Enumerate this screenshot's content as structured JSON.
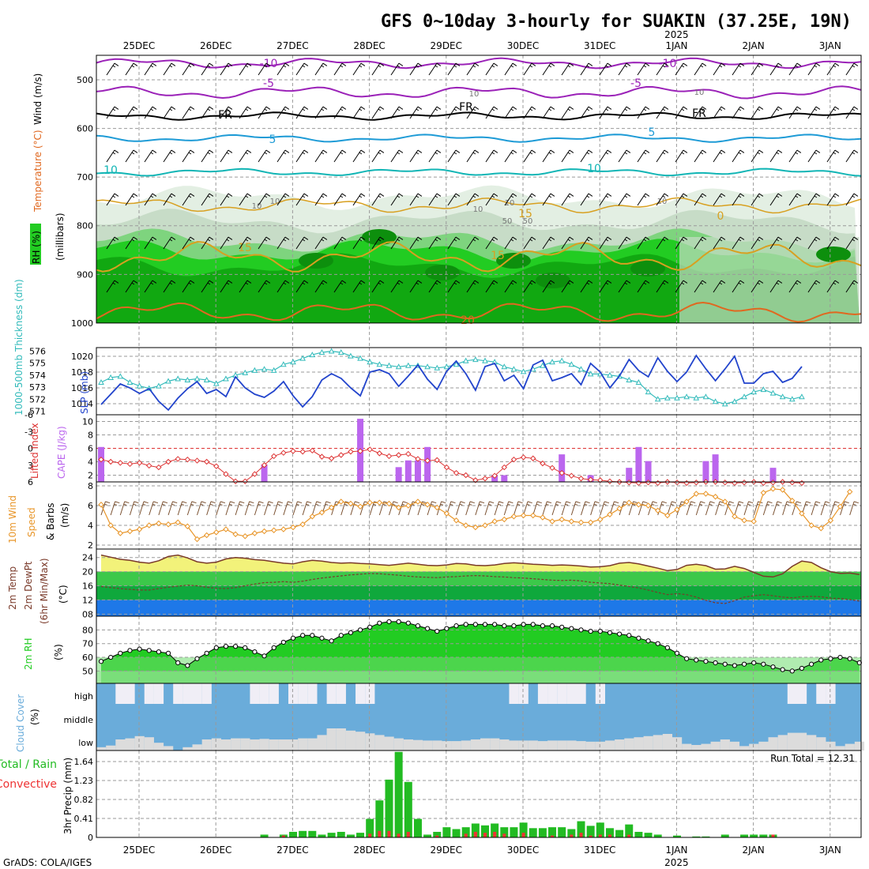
{
  "title": "GFS 0~10day 3-hourly for SUAKIN (37.25E, 19N)",
  "credit": "GrADS: COLA/IGES",
  "year_label": "2025",
  "dates": [
    "25DEC",
    "26DEC",
    "27DEC",
    "28DEC",
    "29DEC",
    "30DEC",
    "31DEC",
    "1JAN",
    "2JAN",
    "3JAN"
  ],
  "panel_labels": {
    "upper_rh": "RH (%)",
    "upper_temp": "Temperature (°C)",
    "upper_wind": "Wind (m/s)",
    "upper_units": "(millibars)",
    "thickness": "1000-500mb Thickness (dm)",
    "slp": "SLP (mb)",
    "lifted_index": "Lifted Index",
    "cape": "CAPE (J/kg)",
    "wind10m_a": "10m Wind",
    "wind10m_b": "Speed",
    "wind10m_c": "& Barbs",
    "wind10m_units": "(m/s)",
    "temp2m_a": "2m Temp",
    "temp2m_b": "2m DewPt",
    "temp2m_c": "(6hr Min/Max)",
    "temp2m_units": "(°C)",
    "rh2m": "2m RH",
    "rh2m_units": "(%)",
    "cloud": "Cloud Cover",
    "cloud_units": "(%)",
    "precip_a": "Total / Rain",
    "precip_b": "Convective",
    "precip_units": "3hr Precip (mm)"
  },
  "run_total_label": "Run Total = 12.31",
  "colors": {
    "rh_green": "#22cc22",
    "slp": "#2244cc",
    "thickness": "#33bbbb",
    "lifted": "#dd3333",
    "cape": "#bb66ee",
    "wind10m": "#e8962a",
    "cloud": "#6aacda",
    "precip_total": "#22bb22",
    "precip_conv": "#ee3333"
  },
  "chart_data": [
    {
      "type": "heatmap",
      "name": "upper-air cross section",
      "y_axis": {
        "ticks": [
          "500",
          "600",
          "700",
          "800",
          "900",
          "1000"
        ]
      },
      "contour_labels": {
        "wind": [
          "10",
          "5",
          "10",
          "5",
          "10"
        ],
        "temperature": [
          "-10",
          "-10",
          "-5",
          "-5",
          "FR",
          "FR",
          "FR",
          "5",
          "5",
          "10",
          "10",
          "15",
          "15",
          "15",
          "0",
          "20"
        ],
        "rh": [
          "10",
          "10",
          "10",
          "10",
          "10",
          "10",
          "10",
          "50",
          "50"
        ]
      }
    },
    {
      "type": "line",
      "name": "thickness and slp",
      "y_left": {
        "ticks": [
          "576",
          "575",
          "574",
          "573",
          "572",
          "571"
        ],
        "ylim": [
          570.7,
          576.3
        ]
      },
      "y_right": {
        "ticks": [
          "1020",
          "1018",
          "1016",
          "1014"
        ],
        "ylim": [
          1012.6,
          1021.1
        ]
      },
      "thickness": [
        573.4,
        573.8,
        573.9,
        573.4,
        573.1,
        572.9,
        573.1,
        573.5,
        573.7,
        573.6,
        573.7,
        573.6,
        573.3,
        573.7,
        574.0,
        574.2,
        574.4,
        574.5,
        574.4,
        574.9,
        575.1,
        575.4,
        575.7,
        575.9,
        576.0,
        575.9,
        575.6,
        575.4,
        575.1,
        574.9,
        574.8,
        574.7,
        574.8,
        574.8,
        574.7,
        574.6,
        574.7,
        574.9,
        575.2,
        575.3,
        575.2,
        575.1,
        574.7,
        574.5,
        574.3,
        574.5,
        574.8,
        575.1,
        575.2,
        574.9,
        574.5,
        574.1,
        574.1,
        574.0,
        573.9,
        573.6,
        573.4,
        572.6,
        572.0,
        572.1,
        572.1,
        572.2,
        572.1,
        572.2,
        571.8,
        571.6,
        571.8,
        572.2,
        572.6,
        572.8,
        572.5,
        572.2,
        572.0,
        572.2
      ],
      "slp": [
        1013.9,
        1015.2,
        1016.5,
        1016.0,
        1015.3,
        1015.9,
        1014.3,
        1013.2,
        1014.7,
        1015.9,
        1016.8,
        1015.3,
        1015.8,
        1014.9,
        1017.4,
        1016.0,
        1015.2,
        1014.8,
        1015.6,
        1016.8,
        1015.0,
        1013.6,
        1014.9,
        1017.0,
        1017.8,
        1017.2,
        1016.0,
        1015.0,
        1018.0,
        1018.3,
        1017.8,
        1016.2,
        1017.5,
        1018.9,
        1017.1,
        1015.8,
        1018.1,
        1019.4,
        1017.8,
        1015.7,
        1018.7,
        1019.1,
        1016.9,
        1017.6,
        1015.9,
        1018.9,
        1019.5,
        1016.9,
        1017.3,
        1017.8,
        1016.4,
        1019.1,
        1018.0,
        1016.0,
        1017.5,
        1019.6,
        1018.2,
        1017.4,
        1019.8,
        1018.1,
        1016.8,
        1018.0,
        1020.1,
        1018.4,
        1016.9,
        1018.4,
        1020.0,
        1016.6,
        1016.6,
        1017.8,
        1018.1,
        1016.7,
        1017.2,
        1018.7
      ]
    },
    {
      "type": "bar",
      "name": "lifted index and cape",
      "y_left": {
        "ticks": [
          "-6",
          "-3",
          "0",
          "3",
          "6"
        ],
        "ylim": [
          -6.0,
          6.0
        ]
      },
      "y_right": {
        "ticks": [
          "10",
          "8",
          "6",
          "4",
          "2"
        ],
        "ylim": [
          1,
          11
        ]
      },
      "lifted_index": [
        2.0,
        2.4,
        2.6,
        2.8,
        2.6,
        3.1,
        3.4,
        2.4,
        1.9,
        2.0,
        2.2,
        2.4,
        3.2,
        4.6,
        5.9,
        5.9,
        4.6,
        3.0,
        1.4,
        0.8,
        0.5,
        0.6,
        0.4,
        1.5,
        1.8,
        1.2,
        0.6,
        0.5,
        0.2,
        0.9,
        1.4,
        1.2,
        1.0,
        1.9,
        2.2,
        2.1,
        3.4,
        4.4,
        4.8,
        5.7,
        5.4,
        4.9,
        3.4,
        2.0,
        1.6,
        1.8,
        2.7,
        3.5,
        4.4,
        4.9,
        5.4,
        5.6,
        5.7,
        5.9,
        6.0,
        6.1,
        6.2,
        6.1,
        6.2,
        6.0,
        6.1,
        6.2,
        6.1,
        6.0,
        6.0,
        6.1,
        6.2,
        6.1,
        6.0,
        6.2,
        6.1,
        6.0,
        6.1,
        6.2
      ],
      "cape_bars": [
        {
          "index": 0,
          "value": 6.2
        },
        {
          "index": 17,
          "value": 3.6
        },
        {
          "index": 27,
          "value": 10.4
        },
        {
          "index": 31,
          "value": 3.2
        },
        {
          "index": 32,
          "value": 4.2
        },
        {
          "index": 33,
          "value": 4.2
        },
        {
          "index": 34,
          "value": 6.2
        },
        {
          "index": 41,
          "value": 2.0
        },
        {
          "index": 42,
          "value": 2.0
        },
        {
          "index": 48,
          "value": 5.1
        },
        {
          "index": 51,
          "value": 2.0
        },
        {
          "index": 55,
          "value": 3.1
        },
        {
          "index": 56,
          "value": 6.2
        },
        {
          "index": 57,
          "value": 4.1
        },
        {
          "index": 63,
          "value": 4.1
        },
        {
          "index": 64,
          "value": 5.1
        },
        {
          "index": 70,
          "value": 3.1
        }
      ]
    },
    {
      "type": "line",
      "name": "10m wind speed",
      "y_axis": {
        "ticks": [
          "8",
          "6",
          "4",
          "2"
        ],
        "ylim": [
          1.6,
          8.4
        ]
      },
      "values": [
        6.1,
        4.0,
        3.2,
        3.4,
        3.6,
        4.0,
        4.2,
        4.1,
        4.3,
        3.9,
        2.6,
        3.0,
        3.3,
        3.6,
        3.1,
        2.9,
        3.2,
        3.4,
        3.5,
        3.6,
        3.8,
        4.1,
        4.9,
        5.3,
        5.8,
        6.4,
        6.2,
        5.9,
        6.3,
        6.3,
        6.2,
        5.8,
        6.0,
        6.4,
        6.1,
        5.8,
        5.2,
        4.5,
        4.0,
        3.8,
        4.0,
        4.4,
        4.6,
        4.9,
        5.0,
        5.0,
        4.8,
        4.4,
        4.6,
        4.4,
        4.3,
        4.3,
        4.6,
        5.1,
        5.7,
        6.3,
        6.1,
        6.0,
        5.5,
        5.0,
        5.6,
        6.4,
        7.2,
        7.2,
        6.9,
        6.4,
        4.9,
        4.5,
        4.4,
        7.3,
        7.7,
        7.6,
        6.5,
        5.2,
        4.0,
        3.7,
        4.5,
        5.9,
        7.4
      ]
    },
    {
      "type": "area",
      "name": "2m temperature and dew point",
      "y_axis": {
        "ticks": [
          "24",
          "20",
          "16",
          "12",
          "08"
        ],
        "ylim": [
          7.4,
          26.4
        ]
      },
      "temperature": [
        24.7,
        24.1,
        23.5,
        23.2,
        22.7,
        22.4,
        23.1,
        24.3,
        24.7,
        23.9,
        22.8,
        22.4,
        22.7,
        23.6,
        24.0,
        23.8,
        23.4,
        23.2,
        22.8,
        22.4,
        22.2,
        22.8,
        23.2,
        23.0,
        22.6,
        22.4,
        22.5,
        22.3,
        22.2,
        22.0,
        21.8,
        22.1,
        22.4,
        22.1,
        21.8,
        21.7,
        21.9,
        22.3,
        22.2,
        21.8,
        21.7,
        21.9,
        22.3,
        22.5,
        22.3,
        22.1,
        22.0,
        21.8,
        21.9,
        21.8,
        21.6,
        21.3,
        21.4,
        21.7,
        22.4,
        22.6,
        22.2,
        21.6,
        21.0,
        20.3,
        20.6,
        21.8,
        22.1,
        21.7,
        20.7,
        20.8,
        21.5,
        20.9,
        19.8,
        18.7,
        18.5,
        19.4,
        21.5,
        23.0,
        22.6,
        21.1,
        20.0,
        19.5,
        19.6,
        19.2
      ],
      "dewpoint": [
        15.8,
        15.5,
        15.2,
        15.0,
        14.8,
        14.8,
        15.2,
        15.6,
        15.9,
        16.2,
        16.0,
        15.6,
        15.3,
        15.2,
        15.5,
        16.0,
        16.5,
        16.9,
        17.0,
        17.2,
        17.0,
        17.3,
        17.8,
        18.2,
        18.5,
        18.8,
        19.1,
        19.3,
        19.5,
        19.4,
        19.2,
        19.0,
        18.7,
        18.5,
        18.4,
        18.3,
        18.5,
        18.6,
        18.8,
        18.9,
        18.8,
        18.6,
        18.5,
        18.3,
        18.2,
        18.0,
        17.8,
        17.6,
        17.5,
        17.6,
        17.4,
        17.0,
        16.8,
        16.6,
        16.2,
        15.8,
        15.4,
        14.8,
        14.1,
        13.5,
        13.8,
        13.5,
        12.8,
        11.9,
        11.2,
        11.0,
        11.8,
        12.8,
        13.2,
        13.5,
        13.2,
        12.8,
        12.6,
        12.9,
        13.0,
        12.9,
        12.5,
        12.4,
        12.1,
        11.7
      ]
    },
    {
      "type": "area",
      "name": "2m relative humidity",
      "y_axis": {
        "ticks": [
          "80",
          "70",
          "60",
          "50"
        ],
        "ylim": [
          41,
          90
        ]
      },
      "values": [
        57,
        60,
        63,
        65,
        66,
        65,
        64,
        63,
        56,
        54,
        59,
        63,
        67,
        68,
        68,
        67,
        64,
        61,
        67,
        71,
        74,
        76,
        76,
        74,
        72,
        76,
        78,
        80,
        82,
        85,
        86,
        86,
        85,
        83,
        81,
        79,
        81,
        83,
        84,
        84,
        84,
        84,
        83,
        83,
        84,
        84,
        83,
        83,
        82,
        81,
        80,
        79,
        79,
        78,
        77,
        76,
        74,
        72,
        70,
        67,
        63,
        59,
        58,
        57,
        56,
        55,
        54,
        55,
        56,
        55,
        53,
        51,
        50,
        52,
        55,
        58,
        59,
        60,
        59,
        56
      ]
    },
    {
      "type": "area",
      "name": "cloud cover",
      "y_axis": {
        "ticks": [
          "high",
          "middle",
          "low"
        ]
      },
      "low": [
        6,
        9,
        20,
        22,
        26,
        24,
        14,
        8,
        0,
        6,
        11,
        20,
        22,
        20,
        22,
        22,
        20,
        21,
        20,
        20,
        20,
        22,
        22,
        28,
        40,
        40,
        36,
        34,
        31,
        28,
        25,
        22,
        20,
        19,
        18,
        18,
        17,
        17,
        18,
        20,
        22,
        22,
        20,
        18,
        18,
        18,
        17,
        18,
        18,
        18,
        17,
        16,
        16,
        18,
        20,
        22,
        24,
        26,
        28,
        30,
        24,
        12,
        10,
        12,
        16,
        20,
        16,
        8,
        12,
        16,
        24,
        28,
        32,
        32,
        28,
        24,
        16,
        8,
        12,
        16
      ],
      "high_gaps": [
        2,
        3,
        5,
        6,
        8,
        9,
        10,
        11,
        16,
        17,
        18,
        20,
        21,
        22,
        24,
        25,
        27,
        28,
        43,
        44,
        46,
        47,
        48,
        49,
        50,
        52,
        72,
        73,
        75,
        76
      ]
    },
    {
      "type": "bar",
      "name": "3hr precipitation",
      "y_axis": {
        "ticks": [
          "1.64",
          "1.23",
          "0.82",
          "0.41",
          "0"
        ],
        "ylim": [
          0,
          1.88
        ]
      },
      "total": [
        0,
        0,
        0,
        0,
        0,
        0,
        0,
        0,
        0,
        0,
        0,
        0,
        0,
        0,
        0,
        0,
        0,
        0.06,
        0,
        0.06,
        0.12,
        0.14,
        0.14,
        0.06,
        0.1,
        0.12,
        0.06,
        0.1,
        0.4,
        0.8,
        1.25,
        1.85,
        1.2,
        0.4,
        0.06,
        0.12,
        0.22,
        0.18,
        0.22,
        0.3,
        0.26,
        0.3,
        0.22,
        0.22,
        0.32,
        0.2,
        0.2,
        0.22,
        0.22,
        0.18,
        0.35,
        0.25,
        0.32,
        0.2,
        0.16,
        0.28,
        0.12,
        0.1,
        0.06,
        0,
        0.04,
        0,
        0.02,
        0.02,
        0,
        0.06,
        0,
        0.06,
        0.06,
        0.06,
        0.06,
        0,
        0,
        0,
        0,
        0,
        0,
        0,
        0,
        0
      ],
      "convective": [
        0,
        0,
        0,
        0,
        0,
        0,
        0,
        0,
        0,
        0,
        0,
        0,
        0,
        0,
        0,
        0,
        0,
        0,
        0,
        0.04,
        0,
        0,
        0,
        0,
        0,
        0,
        0,
        0,
        0.08,
        0.14,
        0.14,
        0.08,
        0.12,
        0,
        0,
        0.04,
        0,
        0,
        0.08,
        0.12,
        0.1,
        0.12,
        0.08,
        0,
        0.1,
        0,
        0,
        0.04,
        0,
        0.06,
        0.1,
        0.04,
        0.06,
        0.06,
        0,
        0.06,
        0,
        0,
        0,
        0,
        0,
        0,
        0,
        0,
        0,
        0,
        0,
        0,
        0,
        0,
        0.06,
        0,
        0,
        0,
        0,
        0,
        0,
        0,
        0,
        0
      ]
    }
  ]
}
